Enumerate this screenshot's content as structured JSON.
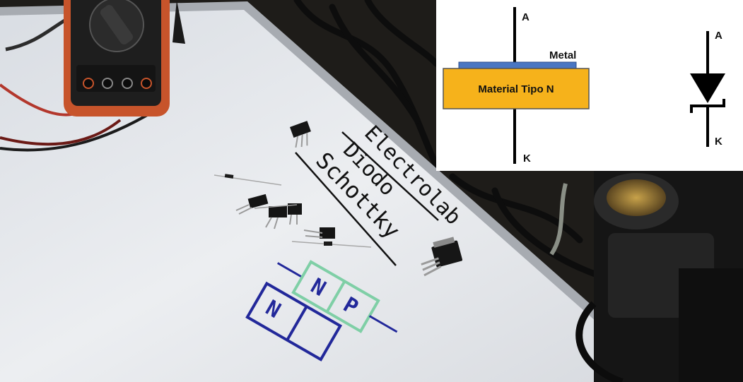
{
  "board": {
    "title_line1": "Electrolab",
    "title_line2": "Diodo",
    "title_line3": "Schottky",
    "np_left_n": "N",
    "np_green_n": "N",
    "np_green_p": "P"
  },
  "inset": {
    "label_anode_left": "A",
    "label_cathode_left": "K",
    "label_metal": "Metal",
    "label_material": "Material Tipo N",
    "label_anode_symbol": "A",
    "label_cathode_symbol": "K"
  },
  "colors": {
    "whiteboard": "#e4e6ea",
    "multimeter_body": "#c7542b",
    "metal_layer": "#4a76c2",
    "n_material": "#f6b21b",
    "marker_blue": "#22289a",
    "marker_green": "#7fcfa6"
  }
}
